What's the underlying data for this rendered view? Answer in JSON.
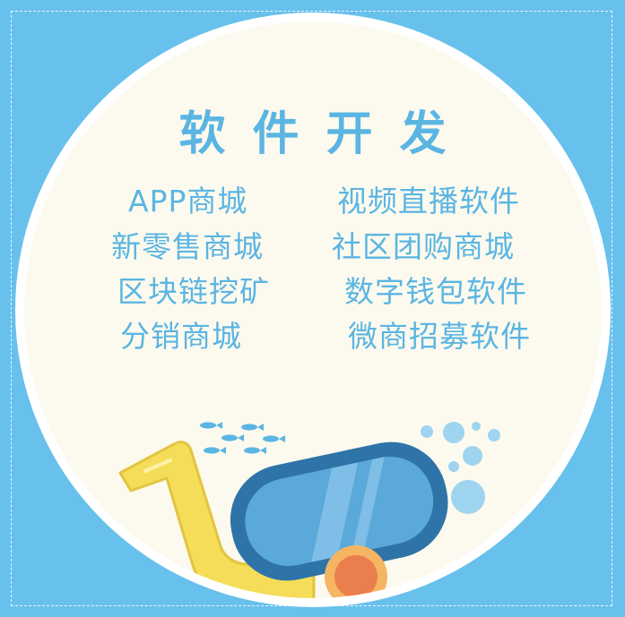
{
  "title": "软件开发",
  "left_items": [
    "APP商城",
    "新零售商城",
    "区块链挖矿",
    "分销商城"
  ],
  "right_items": [
    "视频直播软件",
    "社区团购商城",
    "数字钱包软件",
    "微商招募软件"
  ],
  "colors": {
    "background": "#68c1ec",
    "circle": "#fcfaee",
    "text": "#5bb5e3",
    "snorkel": "#f5dd5a",
    "goggle_frame": "#2f74a8",
    "goggle_lens": "#5aa9da",
    "knob": "#f0a958"
  },
  "icons": [
    "fish-icon",
    "bubble-icon",
    "snorkel-icon",
    "diving-goggles-icon"
  ]
}
